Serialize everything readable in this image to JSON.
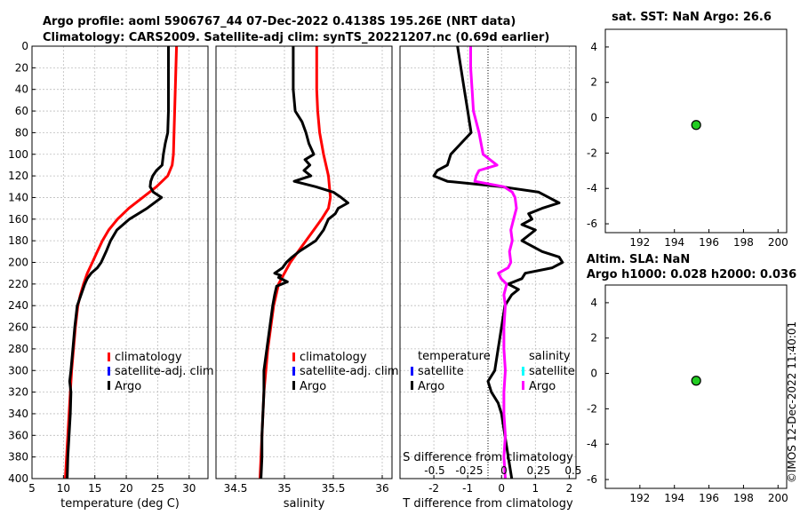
{
  "header": {
    "title_line1": "Argo profile: aoml 5906767_44 07-Dec-2022 0.4138S 195.26E (NRT data)",
    "title_line2": "Climatology: CARS2009. Satellite-adj clim: synTS_20221207.nc (0.69d earlier)"
  },
  "watermark": "©IMOS 12-Dec-2022 11:40:01",
  "colors": {
    "climatology": "#ff0000",
    "satellite": "#0000ff",
    "argo": "#000000",
    "salinity_diff": "#ff00ff",
    "salinity_sat": "#00ffff",
    "marker": "#22cc22"
  },
  "depth_ticks": [
    "0",
    "20",
    "40",
    "60",
    "80",
    "100",
    "120",
    "140",
    "160",
    "180",
    "200",
    "220",
    "240",
    "260",
    "280",
    "300",
    "320",
    "340",
    "360",
    "380",
    "400"
  ],
  "chart_data": [
    {
      "id": "temperature",
      "type": "line",
      "xlabel": "temperature (deg C)",
      "ylabel": "depth",
      "xlim": [
        5,
        33
      ],
      "ylim": [
        0,
        400
      ],
      "y_reversed": true,
      "x_ticks": [
        "5",
        "10",
        "15",
        "20",
        "25",
        "30"
      ],
      "legend": {
        "placement": "lower-right",
        "entries": [
          "climatology",
          "satellite-adj. clim",
          "Argo"
        ]
      },
      "series": [
        {
          "name": "climatology",
          "depth": [
            0,
            20,
            40,
            60,
            80,
            100,
            110,
            120,
            130,
            140,
            150,
            160,
            170,
            180,
            190,
            200,
            210,
            220,
            230,
            240,
            260,
            280,
            300,
            320,
            340,
            360,
            380,
            400
          ],
          "values": [
            28.0,
            27.9,
            27.8,
            27.7,
            27.6,
            27.5,
            27.3,
            26.6,
            24.8,
            22.6,
            20.4,
            18.6,
            17.2,
            16.2,
            15.4,
            14.6,
            13.8,
            13.2,
            12.7,
            12.3,
            11.9,
            11.6,
            11.3,
            11.1,
            10.9,
            10.7,
            10.5,
            10.3
          ]
        },
        {
          "name": "Argo",
          "depth": [
            0,
            20,
            40,
            60,
            80,
            90,
            100,
            110,
            115,
            120,
            125,
            130,
            135,
            140,
            150,
            160,
            170,
            180,
            190,
            200,
            205,
            210,
            215,
            220,
            230,
            240,
            260,
            280,
            300,
            310,
            320,
            340,
            360,
            380,
            400
          ],
          "values": [
            26.7,
            26.7,
            26.7,
            26.7,
            26.6,
            26.2,
            25.9,
            25.7,
            24.8,
            24.2,
            23.9,
            23.8,
            24.3,
            25.6,
            23.3,
            20.5,
            18.5,
            17.5,
            16.8,
            16.0,
            15.4,
            14.4,
            13.8,
            13.4,
            12.8,
            12.2,
            11.8,
            11.5,
            11.2,
            11.0,
            11.2,
            11.1,
            10.9,
            10.7,
            10.6
          ]
        }
      ]
    },
    {
      "id": "salinity",
      "type": "line",
      "xlabel": "salinity",
      "ylabel": "depth",
      "xlim": [
        34.3,
        36.1
      ],
      "ylim": [
        0,
        400
      ],
      "y_reversed": true,
      "x_ticks": [
        "34.5",
        "35",
        "35.5",
        "36"
      ],
      "legend": {
        "placement": "lower-right",
        "entries": [
          "climatology",
          "satellite-adj. clim",
          "Argo"
        ]
      },
      "series": [
        {
          "name": "climatology",
          "depth": [
            0,
            20,
            40,
            60,
            80,
            100,
            120,
            140,
            150,
            160,
            170,
            180,
            190,
            200,
            210,
            220,
            240,
            260,
            280,
            300,
            320,
            340,
            360,
            380,
            400
          ],
          "values": [
            35.33,
            35.33,
            35.33,
            35.34,
            35.36,
            35.4,
            35.45,
            35.47,
            35.45,
            35.38,
            35.3,
            35.22,
            35.14,
            35.06,
            35.0,
            34.94,
            34.89,
            34.86,
            34.83,
            34.81,
            34.79,
            34.78,
            34.77,
            34.76,
            34.75
          ]
        },
        {
          "name": "Argo",
          "depth": [
            0,
            20,
            40,
            60,
            70,
            80,
            90,
            100,
            105,
            110,
            115,
            120,
            125,
            130,
            135,
            140,
            145,
            150,
            155,
            160,
            170,
            180,
            190,
            195,
            200,
            205,
            210,
            212,
            214,
            218,
            222,
            230,
            240,
            260,
            280,
            300,
            320,
            340,
            360,
            380,
            400
          ],
          "values": [
            35.09,
            35.09,
            35.09,
            35.11,
            35.18,
            35.22,
            35.25,
            35.3,
            35.21,
            35.26,
            35.2,
            35.27,
            35.1,
            35.32,
            35.5,
            35.58,
            35.65,
            35.55,
            35.52,
            35.45,
            35.4,
            35.32,
            35.15,
            35.08,
            35.02,
            34.98,
            34.9,
            34.96,
            34.94,
            35.03,
            34.92,
            34.9,
            34.88,
            34.85,
            34.82,
            34.79,
            34.79,
            34.78,
            34.77,
            34.77,
            34.76
          ]
        }
      ]
    },
    {
      "id": "difference",
      "type": "line",
      "xlabel": "T difference from climatology",
      "top_xlabel": "S difference from climatology",
      "ylabel": "depth",
      "xlim": [
        -3,
        2.2
      ],
      "ylim": [
        0,
        400
      ],
      "y_reversed": true,
      "x_ticks": [
        "-2",
        "-1",
        "0",
        "1",
        "2"
      ],
      "top_x_ticks": [
        "-0.5",
        "-0.25",
        "0",
        "0.25",
        "0.5"
      ],
      "legend": {
        "placement": "lower",
        "headers": [
          "temperature",
          "salinity"
        ],
        "temperature_entries": [
          "satellite",
          "Argo"
        ],
        "salinity_entries": [
          "satellite",
          "Argo"
        ]
      },
      "series": [
        {
          "name": "T difference Argo",
          "depth": [
            0,
            20,
            40,
            60,
            80,
            90,
            100,
            110,
            115,
            120,
            125,
            130,
            135,
            140,
            145,
            150,
            155,
            160,
            165,
            170,
            180,
            190,
            195,
            200,
            205,
            210,
            215,
            220,
            225,
            230,
            240,
            260,
            280,
            300,
            310,
            320,
            330,
            340,
            360,
            380,
            400
          ],
          "values": [
            -1.3,
            -1.2,
            -1.1,
            -1.0,
            -0.9,
            -1.2,
            -1.5,
            -1.6,
            -1.9,
            -2.0,
            -1.6,
            0.0,
            1.1,
            1.4,
            1.7,
            1.2,
            0.8,
            0.9,
            0.6,
            1.0,
            0.6,
            1.2,
            1.7,
            1.8,
            1.5,
            0.7,
            0.6,
            0.2,
            0.5,
            0.3,
            0.1,
            0.0,
            -0.1,
            -0.2,
            -0.4,
            -0.3,
            -0.1,
            0.0,
            0.1,
            0.2,
            0.3
          ]
        },
        {
          "name": "S difference Argo",
          "depth": [
            0,
            20,
            40,
            60,
            80,
            100,
            110,
            115,
            120,
            125,
            130,
            135,
            140,
            150,
            160,
            170,
            180,
            190,
            200,
            205,
            210,
            215,
            220,
            230,
            240,
            260,
            280,
            300,
            320,
            340,
            360,
            380,
            400
          ],
          "values": [
            -0.24,
            -0.24,
            -0.23,
            -0.22,
            -0.18,
            -0.15,
            -0.05,
            -0.18,
            -0.2,
            -0.21,
            0.0,
            0.06,
            0.08,
            0.09,
            0.07,
            0.05,
            0.06,
            0.04,
            0.05,
            0.03,
            -0.04,
            -0.02,
            0.02,
            0.0,
            0.01,
            0.0,
            0.0,
            0.01,
            0.0,
            0.0,
            0.01,
            0.0,
            0.01
          ]
        }
      ]
    },
    {
      "id": "sst",
      "type": "scatter",
      "title": "sat. SST: NaN Argo: 26.6",
      "xlim": [
        190,
        200.5
      ],
      "ylim": [
        -6.5,
        5
      ],
      "x_ticks": [
        "192",
        "194",
        "196",
        "198",
        "200"
      ],
      "y_ticks": [
        "4",
        "2",
        "0",
        "-2",
        "-4",
        "-6"
      ],
      "points": [
        {
          "x": 195.26,
          "y": -0.41
        }
      ]
    },
    {
      "id": "sla",
      "type": "scatter",
      "title": "Altim. SLA: NaN",
      "subtitle": "Argo h1000: 0.028 h2000: 0.036",
      "xlim": [
        190,
        200.5
      ],
      "ylim": [
        -6.5,
        5
      ],
      "x_ticks": [
        "192",
        "194",
        "196",
        "198",
        "200"
      ],
      "y_ticks": [
        "4",
        "2",
        "0",
        "-2",
        "-4",
        "-6"
      ],
      "points": [
        {
          "x": 195.26,
          "y": -0.41
        }
      ]
    }
  ]
}
